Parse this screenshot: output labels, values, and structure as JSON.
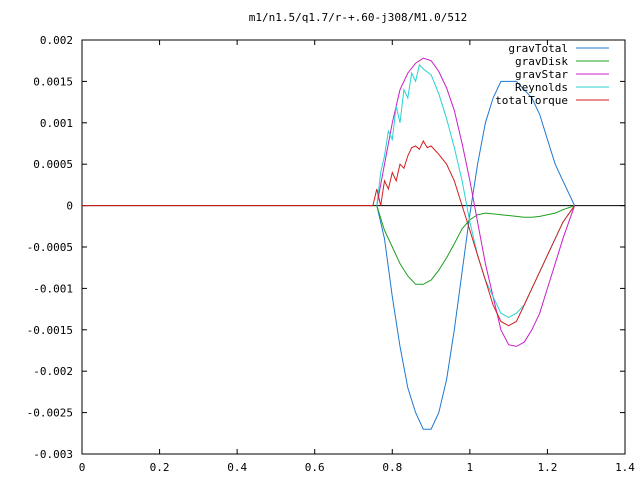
{
  "chart_data": {
    "type": "line",
    "title": "m1/n1.5/q1.7/r-+.60-j308/M1.0/512",
    "xlabel": "",
    "ylabel": "",
    "xlim": [
      0,
      1.4
    ],
    "ylim": [
      -0.003,
      0.002
    ],
    "xticks": [
      "0",
      "0.2",
      "0.4",
      "0.6",
      "0.8",
      "1",
      "1.2",
      "1.4"
    ],
    "yticks": [
      "0.002",
      "0.0015",
      "0.001",
      "0.0005",
      "0",
      "-0.0005",
      "-0.001",
      "-0.0015",
      "-0.002",
      "-0.0025",
      "-0.003"
    ],
    "grid": false,
    "legend": "top-right",
    "series": [
      {
        "name": "gravTotal",
        "color": "#1e78d2",
        "x": [
          0.76,
          0.78,
          0.8,
          0.82,
          0.84,
          0.86,
          0.88,
          0.9,
          0.92,
          0.94,
          0.96,
          0.98,
          1.0,
          1.02,
          1.04,
          1.06,
          1.08,
          1.1,
          1.12,
          1.14,
          1.16,
          1.18,
          1.2,
          1.22,
          1.24,
          1.27
        ],
        "y": [
          0.0,
          -0.0004,
          -0.0011,
          -0.0017,
          -0.0022,
          -0.0025,
          -0.0027,
          -0.0027,
          -0.0025,
          -0.0021,
          -0.0015,
          -0.0008,
          -0.0001,
          0.0005,
          0.001,
          0.0013,
          0.0015,
          0.0015,
          0.0015,
          0.0014,
          0.0013,
          0.0011,
          0.0008,
          0.0005,
          0.0003,
          0.0
        ]
      },
      {
        "name": "gravDisk",
        "color": "#1ea01e",
        "x": [
          0.76,
          0.78,
          0.8,
          0.82,
          0.84,
          0.86,
          0.88,
          0.9,
          0.92,
          0.94,
          0.96,
          0.98,
          1.0,
          1.02,
          1.04,
          1.06,
          1.08,
          1.1,
          1.12,
          1.14,
          1.16,
          1.18,
          1.2,
          1.22,
          1.24,
          1.27
        ],
        "y": [
          0.0,
          -0.0003,
          -0.0005,
          -0.0007,
          -0.00085,
          -0.00095,
          -0.00095,
          -0.0009,
          -0.00078,
          -0.00063,
          -0.00046,
          -0.00028,
          -0.00017,
          -0.00011,
          -9e-05,
          -0.0001,
          -0.00011,
          -0.00012,
          -0.00013,
          -0.00014,
          -0.00014,
          -0.00013,
          -0.00011,
          -9e-05,
          -5e-05,
          0.0
        ]
      },
      {
        "name": "gravStar",
        "color": "#c81ec8",
        "x": [
          0.76,
          0.78,
          0.8,
          0.82,
          0.84,
          0.86,
          0.88,
          0.9,
          0.92,
          0.94,
          0.96,
          0.98,
          1.0,
          1.02,
          1.04,
          1.06,
          1.08,
          1.1,
          1.12,
          1.14,
          1.16,
          1.18,
          1.2,
          1.22,
          1.24,
          1.27
        ],
        "y": [
          0.0,
          0.0005,
          0.001,
          0.0014,
          0.0016,
          0.00172,
          0.00178,
          0.00175,
          0.00162,
          0.00142,
          0.00115,
          0.00075,
          0.0003,
          -0.0002,
          -0.0007,
          -0.0011,
          -0.0015,
          -0.00168,
          -0.0017,
          -0.00165,
          -0.0015,
          -0.0013,
          -0.001,
          -0.0007,
          -0.0004,
          0.0
        ]
      },
      {
        "name": "Reynolds",
        "color": "#28d2d2",
        "x": [
          0.76,
          0.77,
          0.78,
          0.79,
          0.8,
          0.81,
          0.82,
          0.83,
          0.84,
          0.85,
          0.86,
          0.87,
          0.88,
          0.9,
          0.92,
          0.94,
          0.96,
          0.98,
          1.0,
          1.02,
          1.04,
          1.06,
          1.08,
          1.1,
          1.12,
          1.14,
          1.16,
          1.18,
          1.2,
          1.22,
          1.24,
          1.27
        ],
        "y": [
          0.0,
          0.0004,
          0.0006,
          0.0009,
          0.0008,
          0.0012,
          0.001,
          0.0014,
          0.0013,
          0.0016,
          0.0015,
          0.0017,
          0.00165,
          0.00158,
          0.00135,
          0.00105,
          0.0007,
          0.0003,
          -0.0002,
          -0.0006,
          -0.0009,
          -0.0011,
          -0.0013,
          -0.00135,
          -0.0013,
          -0.0012,
          -0.001,
          -0.0008,
          -0.0006,
          -0.0004,
          -0.0002,
          0.0
        ]
      },
      {
        "name": "totalTorque",
        "color": "#d21e1e",
        "x": [
          0.0,
          0.75,
          0.76,
          0.77,
          0.78,
          0.79,
          0.8,
          0.81,
          0.82,
          0.83,
          0.84,
          0.85,
          0.86,
          0.87,
          0.88,
          0.89,
          0.9,
          0.92,
          0.94,
          0.96,
          0.98,
          1.0,
          1.02,
          1.04,
          1.06,
          1.08,
          1.1,
          1.12,
          1.14,
          1.16,
          1.18,
          1.2,
          1.22,
          1.24,
          1.27
        ],
        "y": [
          0.0,
          0.0,
          0.0002,
          0.0,
          0.0003,
          0.0002,
          0.0004,
          0.0003,
          0.0005,
          0.00045,
          0.0006,
          0.0007,
          0.00072,
          0.00068,
          0.00078,
          0.0007,
          0.00072,
          0.00062,
          0.0005,
          0.0003,
          0.0,
          -0.0003,
          -0.0006,
          -0.0009,
          -0.0012,
          -0.0014,
          -0.00145,
          -0.0014,
          -0.0012,
          -0.001,
          -0.0008,
          -0.0006,
          -0.0004,
          -0.0002,
          0.0
        ]
      }
    ]
  }
}
